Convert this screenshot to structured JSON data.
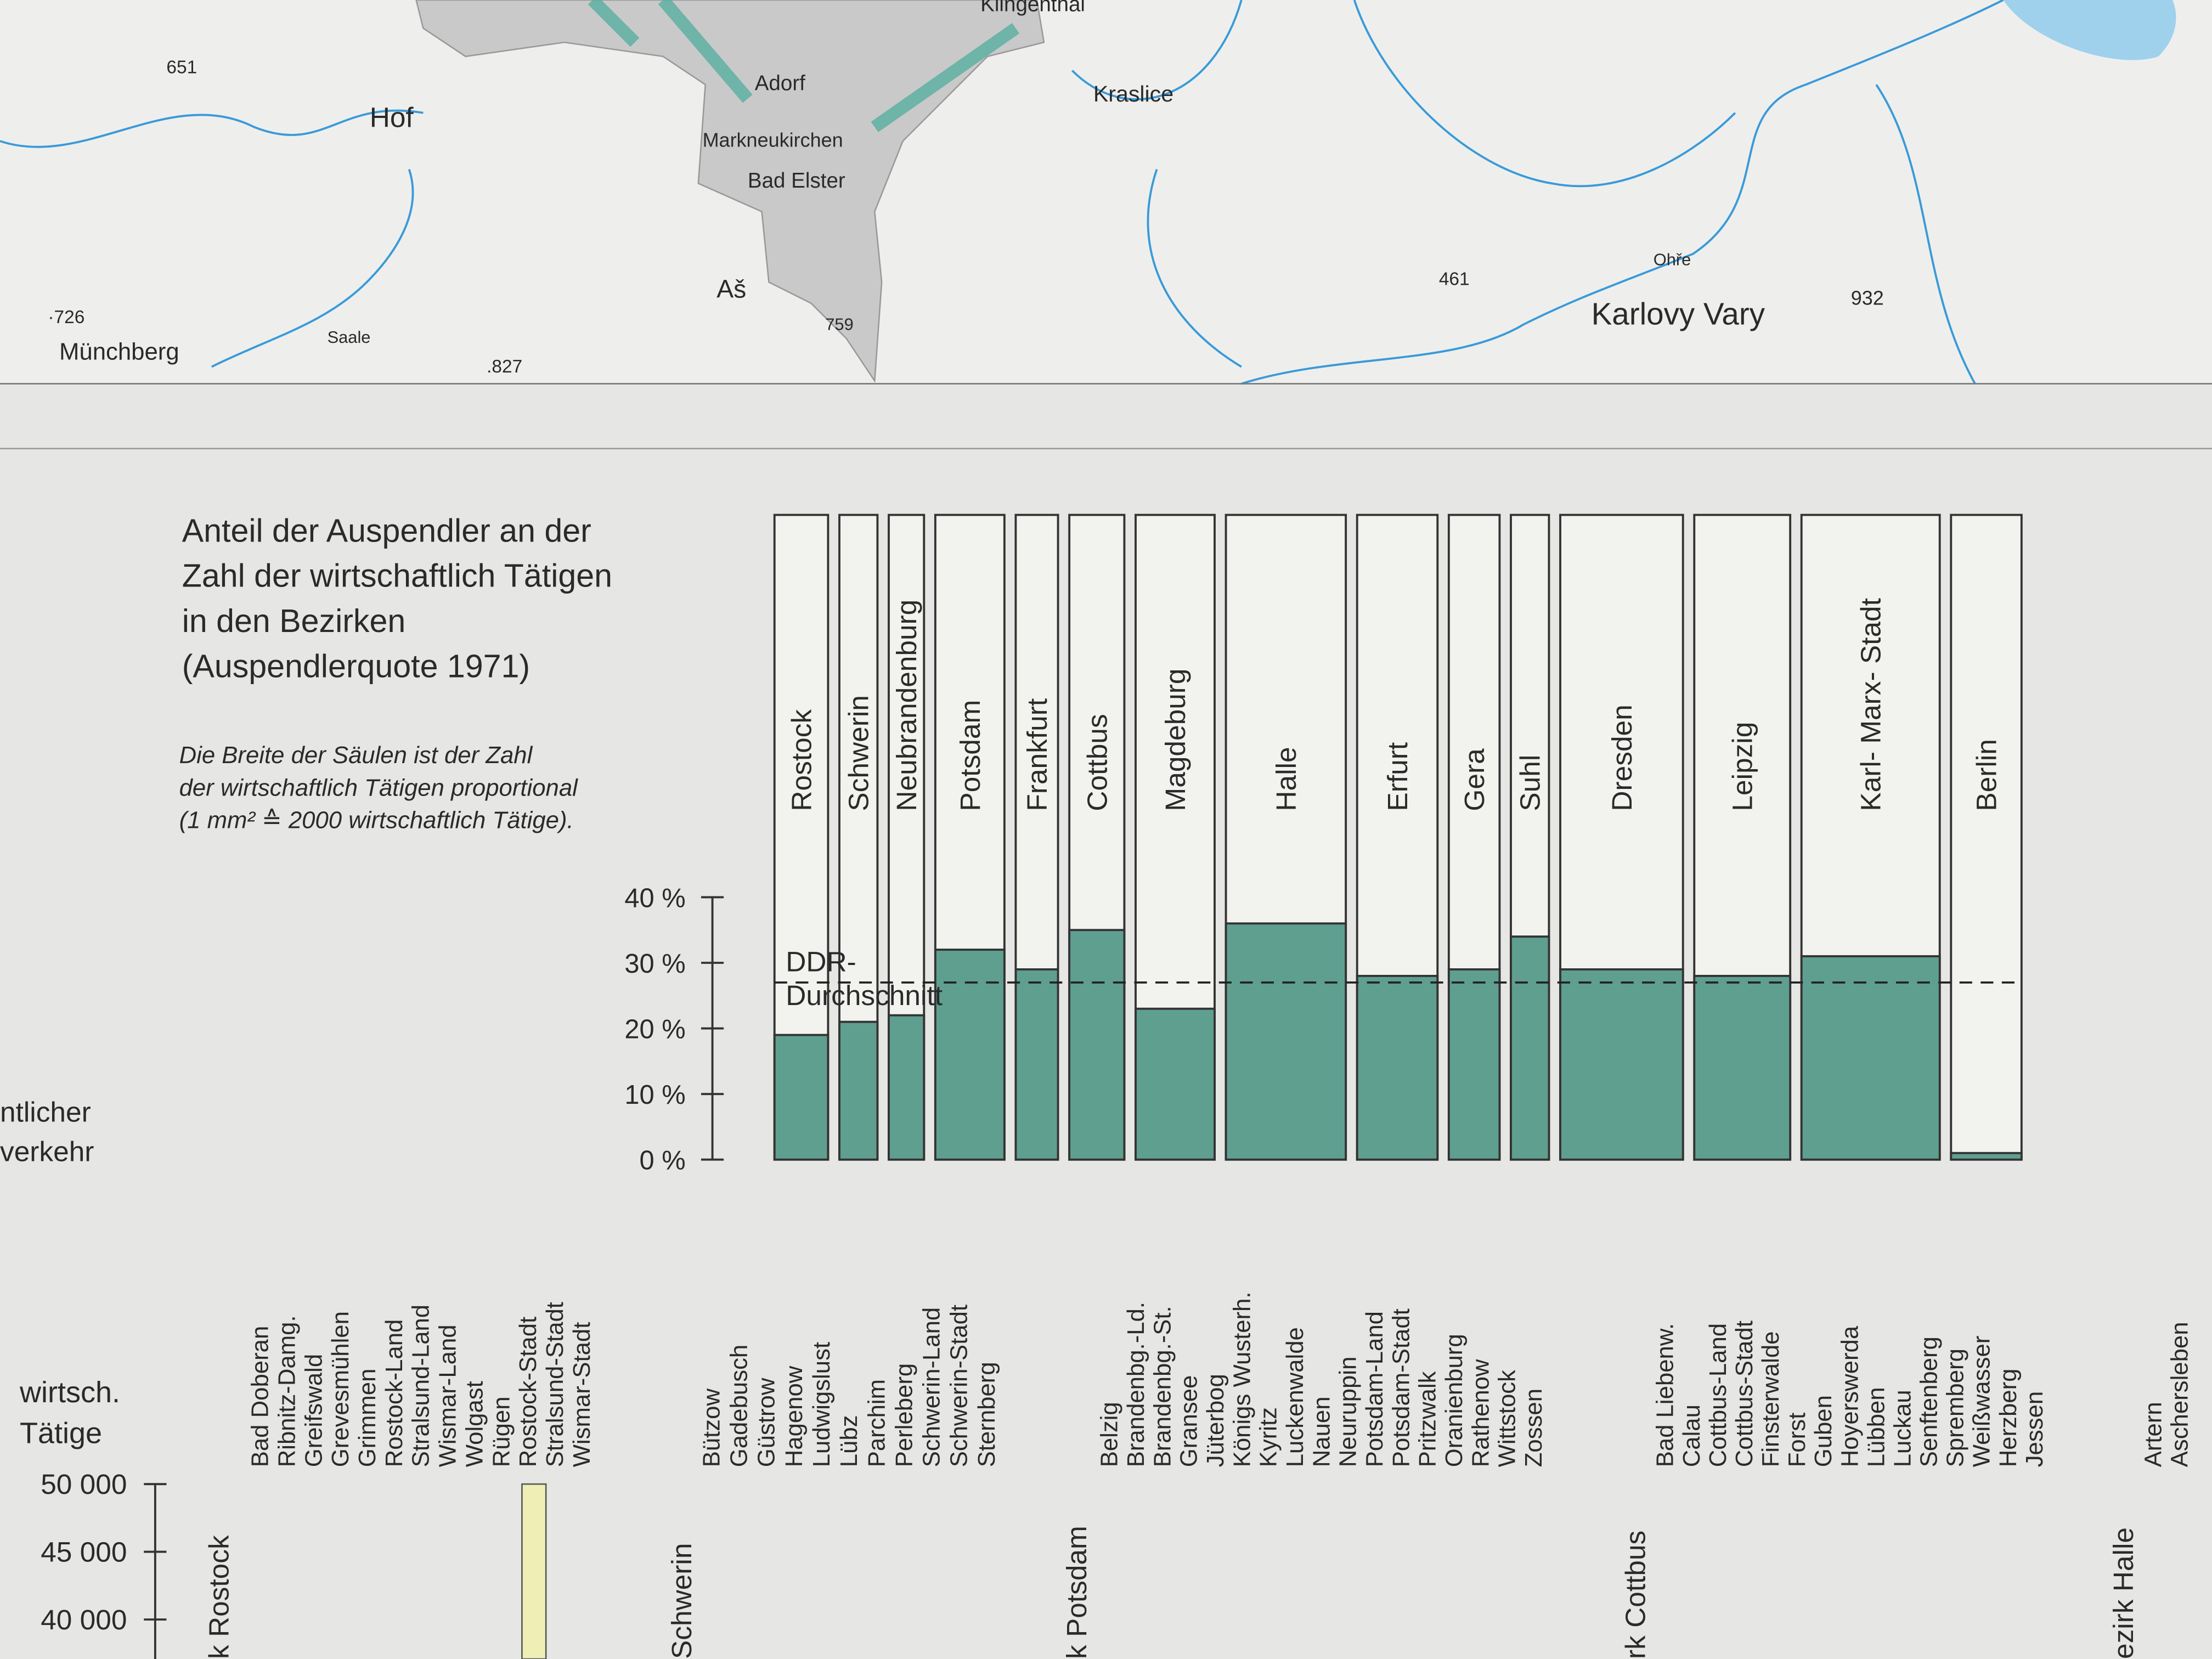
{
  "chart_data": {
    "type": "mekko",
    "title": [
      "Anteil der Auspendler an der",
      "Zahl der wirtschaftlich Tätigen",
      "in den Bezirken",
      "(Auspendlerquote  1971)"
    ],
    "note": [
      "Die Breite der Säulen ist der Zahl",
      "der wirtschaftlich Tätigen proportional",
      "(1 mm² ≙ 2000 wirtschaftlich Tätige)."
    ],
    "categories": [
      "Rostock",
      "Schwerin",
      "Neubrandenburg",
      "Potsdam",
      "Frankfurt",
      "Cottbus",
      "Magdeburg",
      "Halle",
      "Erfurt",
      "Gera",
      "Suhl",
      "Dresden",
      "Leipzig",
      "Karl- Marx- Stadt",
      "Berlin"
    ],
    "values": [
      19,
      21,
      22,
      32,
      29,
      35,
      23,
      36,
      28,
      29,
      34,
      29,
      28,
      31,
      1
    ],
    "widths": [
      38,
      27,
      25,
      49,
      30,
      39,
      56,
      85,
      57,
      36,
      27,
      87,
      68,
      98,
      50
    ],
    "color": "#5f9f90",
    "ylim": [
      0,
      100
    ],
    "yticks": [
      {
        "value": 0,
        "label": "0 %"
      },
      {
        "value": 10,
        "label": "10 %"
      },
      {
        "value": 20,
        "label": "20 %"
      },
      {
        "value": 30,
        "label": "30 %"
      },
      {
        "value": 40,
        "label": "40 %"
      }
    ],
    "average": 27,
    "average_label": [
      "DDR-",
      "Durchschnitt"
    ]
  },
  "side_text": [
    "ntlicher",
    "verkehr"
  ],
  "map": {
    "labels": [
      "Hof",
      "Adorf",
      "Markneukirchen",
      "Bad Elster",
      "Kraslice",
      "Aš",
      "Karlovy Vary",
      "Münchberg",
      "Saale",
      "Ohře",
      "651",
      "·726",
      ".827",
      "759",
      "461",
      "932",
      "Klingenthal"
    ]
  },
  "lower_panel": {
    "axis_title": [
      "wirtsch.",
      "Tätige"
    ],
    "yticks": [
      "50 000",
      "45 000",
      "40 000"
    ],
    "groups": [
      {
        "name": "k Rostock",
        "kreise": [
          "Bad Doberan",
          "Ribnitz-Damg.",
          "Greifswald",
          "Grevesmühlen",
          "Grimmen",
          "Rostock-Land",
          "Stralsund-Land",
          "Wismar-Land",
          "Wolgast",
          "Rügen",
          "Rostock-Stadt",
          "Stralsund-Stadt",
          "Wismar-Stadt"
        ]
      },
      {
        "name": "Schwerin",
        "kreise": [
          "Bützow",
          "Gadebusch",
          "Güstrow",
          "Hagenow",
          "Ludwigslust",
          "Lübz",
          "Parchim",
          "Perleberg",
          "Schwerin-Land",
          "Schwerin-Stadt",
          "Sternberg"
        ]
      },
      {
        "name": "k Potsdam",
        "kreise": [
          "Belzig",
          "Brandenbg.-Ld.",
          "Brandenbg.-St.",
          "Gransee",
          "Jüterbog",
          "Königs Wusterh.",
          "Kyritz",
          "Luckenwalde",
          "Nauen",
          "Neuruppin",
          "Potsdam-Land",
          "Potsdam-Stadt",
          "Pritzwalk",
          "Oranienburg",
          "Rathenow",
          "Wittstock",
          "Zossen"
        ]
      },
      {
        "name": "rk Cottbus",
        "kreise": [
          "Bad Liebenw.",
          "Calau",
          "Cottbus-Land",
          "Cottbus-Stadt",
          "Finsterwalde",
          "Forst",
          "Guben",
          "Hoyerswerda",
          "Lübben",
          "Luckau",
          "Senftenberg",
          "Spremberg",
          "Weißwasser",
          "Herzberg",
          "Jessen"
        ]
      },
      {
        "name": "ezirk Halle",
        "kreise": [
          "Artern",
          "Aschersleben"
        ]
      }
    ]
  }
}
